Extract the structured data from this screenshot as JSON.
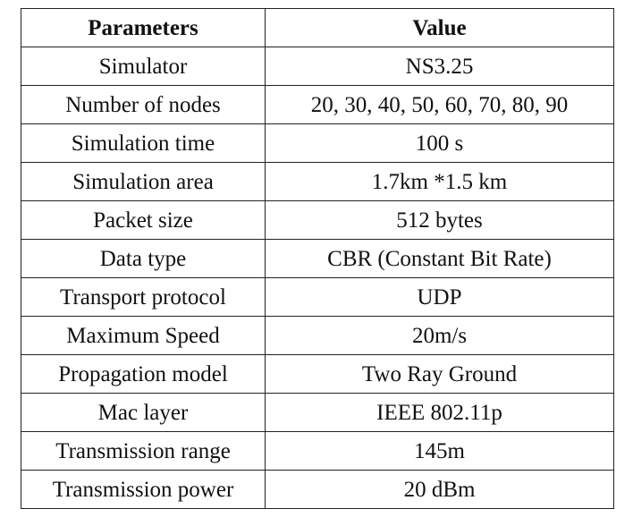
{
  "table": {
    "headers": [
      "Parameters",
      "Value"
    ],
    "rows": [
      [
        "Simulator",
        "NS3.25"
      ],
      [
        "Number of nodes",
        "20, 30, 40, 50, 60, 70, 80, 90"
      ],
      [
        "Simulation time",
        "100 s"
      ],
      [
        "Simulation area",
        "1.7km *1.5 km"
      ],
      [
        "Packet size",
        "512 bytes"
      ],
      [
        "Data type",
        "CBR (Constant Bit Rate)"
      ],
      [
        "Transport protocol",
        "UDP"
      ],
      [
        "Maximum Speed",
        "20m/s"
      ],
      [
        "Propagation model",
        "Two Ray Ground"
      ],
      [
        "Mac layer",
        "IEEE 802.11p"
      ],
      [
        "Transmission range",
        "145m"
      ],
      [
        "Transmission power",
        "20 dBm"
      ]
    ]
  }
}
